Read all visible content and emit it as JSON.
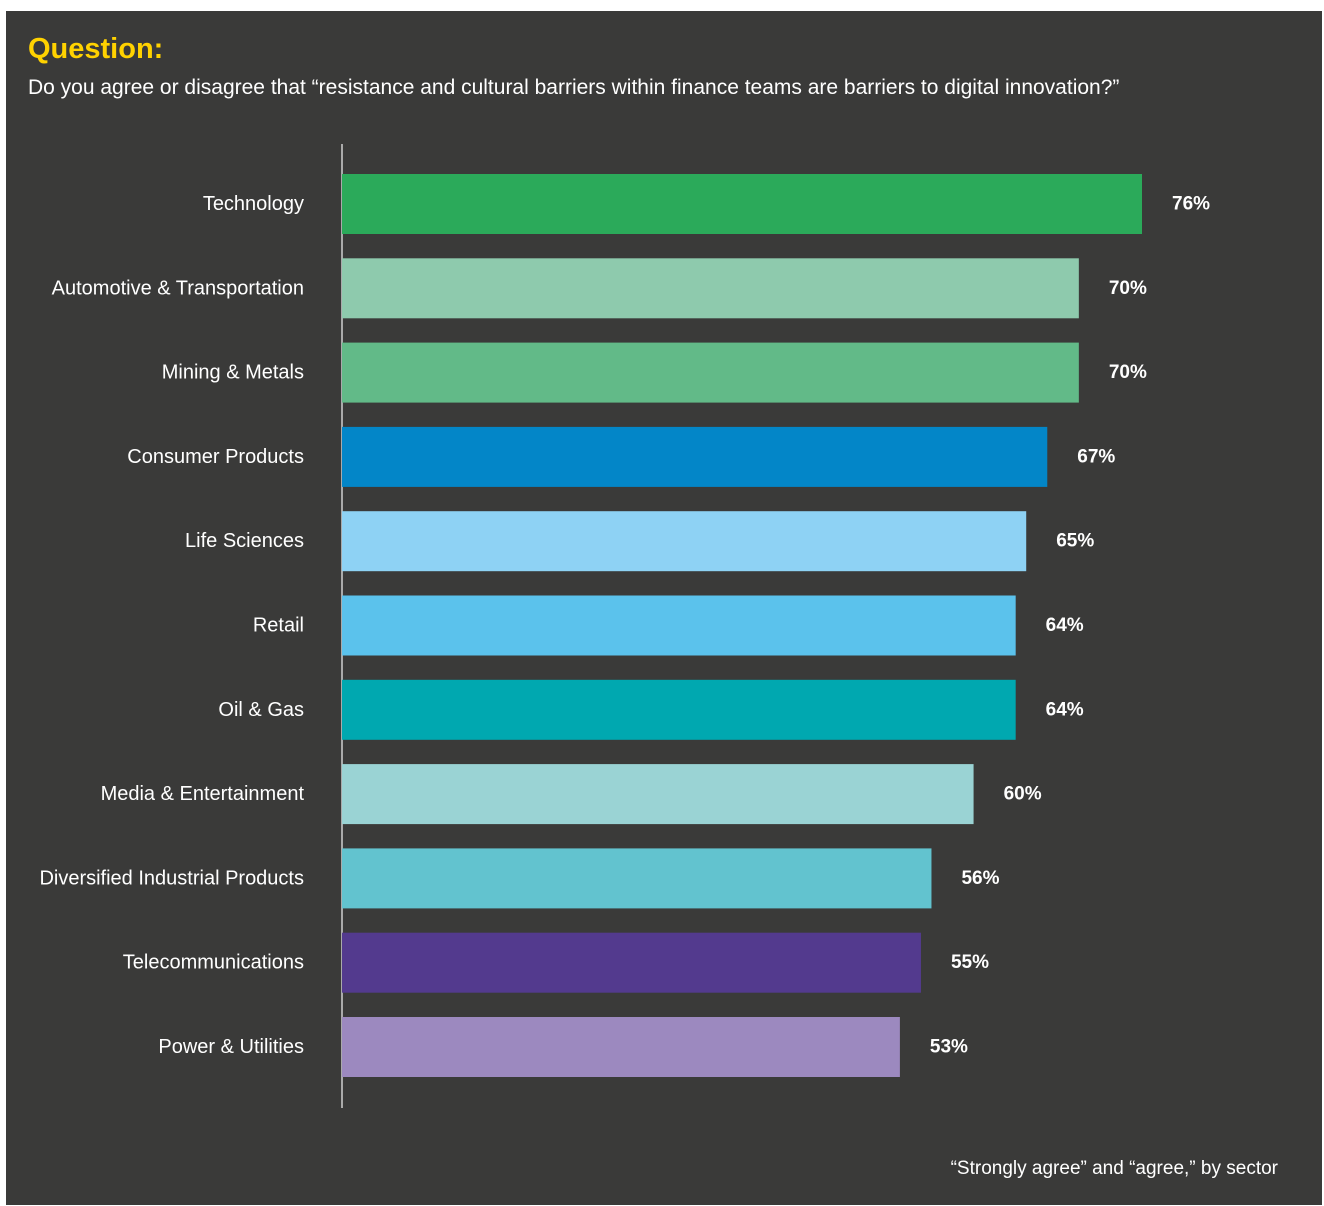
{
  "header": {
    "question_label": "Question:",
    "question_text": "Do you agree or disagree that “resistance and cultural barriers within finance teams are barriers to digital innovation?”"
  },
  "footnote": "“Strongly agree” and “agree,” by sector",
  "colors": {
    "background": "#3a3a39",
    "question_label": "#ffd200",
    "text": "#ffffff",
    "axis": "#d0d0d0"
  },
  "chart_data": {
    "type": "bar",
    "orientation": "horizontal",
    "title": "",
    "xlabel": "",
    "ylabel": "",
    "categories": [
      "Technology",
      "Automotive & Transportation",
      "Mining & Metals",
      "Consumer Products",
      "Life Sciences",
      "Retail",
      "Oil & Gas",
      "Media & Entertainment",
      "Diversified Industrial Products",
      "Telecommunications",
      "Power & Utilities"
    ],
    "values": [
      76,
      70,
      70,
      67,
      65,
      64,
      64,
      60,
      56,
      55,
      53
    ],
    "value_labels": [
      "76%",
      "70%",
      "70%",
      "67%",
      "65%",
      "64%",
      "64%",
      "60%",
      "56%",
      "55%",
      "53%"
    ],
    "bar_colors": [
      "#2baa5a",
      "#8ecaad",
      "#62ba88",
      "#0386c8",
      "#8ed2f4",
      "#5bc2ec",
      "#00a8b0",
      "#9ad3d4",
      "#62c3cf",
      "#533a8e",
      "#9c89bf"
    ],
    "grid": false,
    "legend": "none"
  }
}
